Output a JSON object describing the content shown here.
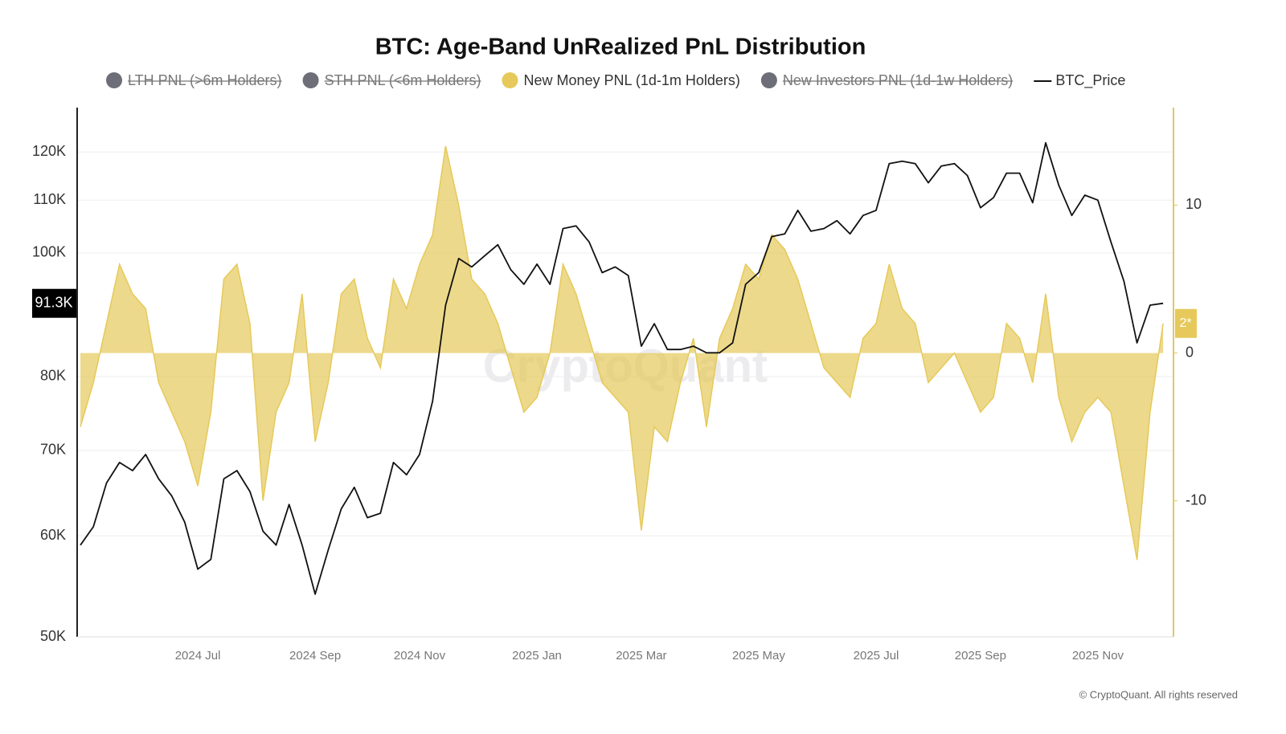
{
  "chart_data": {
    "type": "line",
    "title": "BTC: Age-Band UnRealized PnL Distribution",
    "watermark": "CryptoQuant",
    "copyright": "© CryptoQuant. All rights reserved",
    "last_price_label": "91.3K",
    "last_pnl_label": "2*",
    "categories": [
      null,
      null,
      null,
      null,
      null,
      null,
      null,
      null,
      null,
      "2024 Jul",
      null,
      null,
      null,
      null,
      null,
      null,
      null,
      null,
      "2024 Sep",
      null,
      null,
      null,
      null,
      null,
      null,
      null,
      "2024 Nov",
      null,
      null,
      null,
      null,
      null,
      null,
      null,
      null,
      "2025 Jan",
      null,
      null,
      null,
      null,
      null,
      null,
      null,
      "2025 Mar",
      null,
      null,
      null,
      null,
      null,
      null,
      null,
      null,
      "2025 May",
      null,
      null,
      null,
      null,
      null,
      null,
      null,
      null,
      "2025 Jul",
      null,
      null,
      null,
      null,
      null,
      null,
      null,
      "2025 Sep",
      null,
      null,
      null,
      null,
      null,
      null,
      null,
      null,
      "2025 Nov",
      null,
      null,
      null,
      null,
      null
    ],
    "yscale": "log",
    "ylim": [
      50000,
      130000
    ],
    "yticks": [
      {
        "value": 50000,
        "label": "50K"
      },
      {
        "value": 60000,
        "label": "60K"
      },
      {
        "value": 70000,
        "label": "70K"
      },
      {
        "value": 80000,
        "label": "80K"
      },
      {
        "value": 100000,
        "label": "100K"
      },
      {
        "value": 110000,
        "label": "110K"
      },
      {
        "value": 120000,
        "label": "120K"
      }
    ],
    "y2lim": [
      -19.2,
      16.6
    ],
    "y2ticks": [
      -10,
      0,
      10
    ],
    "grid": true,
    "series": [
      {
        "name": "LTH PNL (>6m Holders)",
        "color": "#6e6e78",
        "hidden": true
      },
      {
        "name": "STH PNL (<6m Holders)",
        "color": "#6e6e78",
        "hidden": true
      },
      {
        "name": "New Money PNL (1d-1m Holders)",
        "color": "#e6c95a",
        "type": "area",
        "axis": "y2",
        "values": [
          -5,
          -2,
          2,
          6,
          4,
          3,
          -2,
          -4,
          -6,
          -9,
          -4,
          5,
          6,
          2,
          -10,
          -4,
          -2,
          4,
          -6,
          -2,
          4,
          5,
          1,
          -1,
          5,
          3,
          6,
          8,
          14,
          10,
          5,
          4,
          2,
          -1,
          -4,
          -3,
          0,
          6,
          4,
          1,
          -2,
          -3,
          -4,
          -12,
          -5,
          -6,
          -2,
          1,
          -5,
          1,
          3,
          6,
          5,
          8,
          7,
          5,
          2,
          -1,
          -2,
          -3,
          1,
          2,
          6,
          3,
          2,
          -2,
          -1,
          0,
          -2,
          -4,
          -3,
          2,
          1,
          -2,
          4,
          -3,
          -6,
          -4,
          -3,
          -4,
          -9,
          -14,
          -4,
          2
        ]
      },
      {
        "name": "New Investors PNL (1d-1w Holders)",
        "color": "#6e6e78",
        "hidden": true
      },
      {
        "name": "BTC_Price",
        "color": "#111111",
        "type": "line",
        "axis": "y",
        "values": [
          59000,
          61000,
          66000,
          68500,
          67500,
          69500,
          66500,
          64500,
          61500,
          56500,
          57500,
          66500,
          67500,
          65000,
          60500,
          59000,
          63500,
          59000,
          54000,
          58500,
          63000,
          65500,
          62000,
          62500,
          68500,
          67000,
          69500,
          76500,
          91000,
          99000,
          97500,
          99500,
          101500,
          97000,
          94500,
          98000,
          94500,
          104500,
          105000,
          102000,
          96500,
          97500,
          96000,
          84500,
          88000,
          84000,
          84000,
          84500,
          83500,
          83500,
          85000,
          94500,
          96500,
          103000,
          103500,
          108000,
          104000,
          104500,
          106000,
          103500,
          107000,
          108000,
          117500,
          118000,
          117500,
          113500,
          117000,
          117500,
          115000,
          108500,
          110500,
          115500,
          115500,
          109500,
          122000,
          113000,
          107000,
          111000,
          110000,
          102000,
          95000,
          85000,
          91000,
          91300
        ]
      }
    ]
  }
}
